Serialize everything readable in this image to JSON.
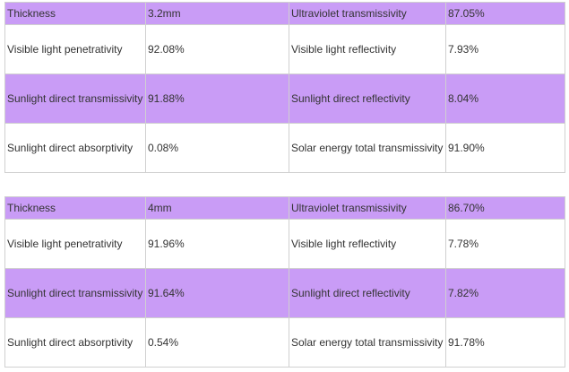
{
  "tables": [
    {
      "rows": [
        [
          "Thickness",
          "3.2mm",
          "Ultraviolet transmissivity",
          "87.05%"
        ],
        [
          "Visible light penetrativity",
          "92.08%",
          "Visible light reflectivity",
          "7.93%"
        ],
        [
          "Sunlight direct transmissivity",
          "91.88%",
          "Sunlight direct reflectivity",
          "8.04%"
        ],
        [
          "Sunlight direct absorptivity",
          "0.08%",
          "Solar energy total transmissivity",
          "91.90%"
        ]
      ]
    },
    {
      "rows": [
        [
          "Thickness",
          "4mm",
          "Ultraviolet transmissivity",
          "86.70%"
        ],
        [
          "Visible light penetrativity",
          "91.96%",
          "Visible light reflectivity",
          "7.78%"
        ],
        [
          "Sunlight direct transmissivity",
          "91.64%",
          "Sunlight direct reflectivity",
          "7.82%"
        ],
        [
          "Sunlight direct absorptivity",
          "0.54%",
          "Solar energy total transmissivity",
          "91.78%"
        ]
      ]
    }
  ]
}
